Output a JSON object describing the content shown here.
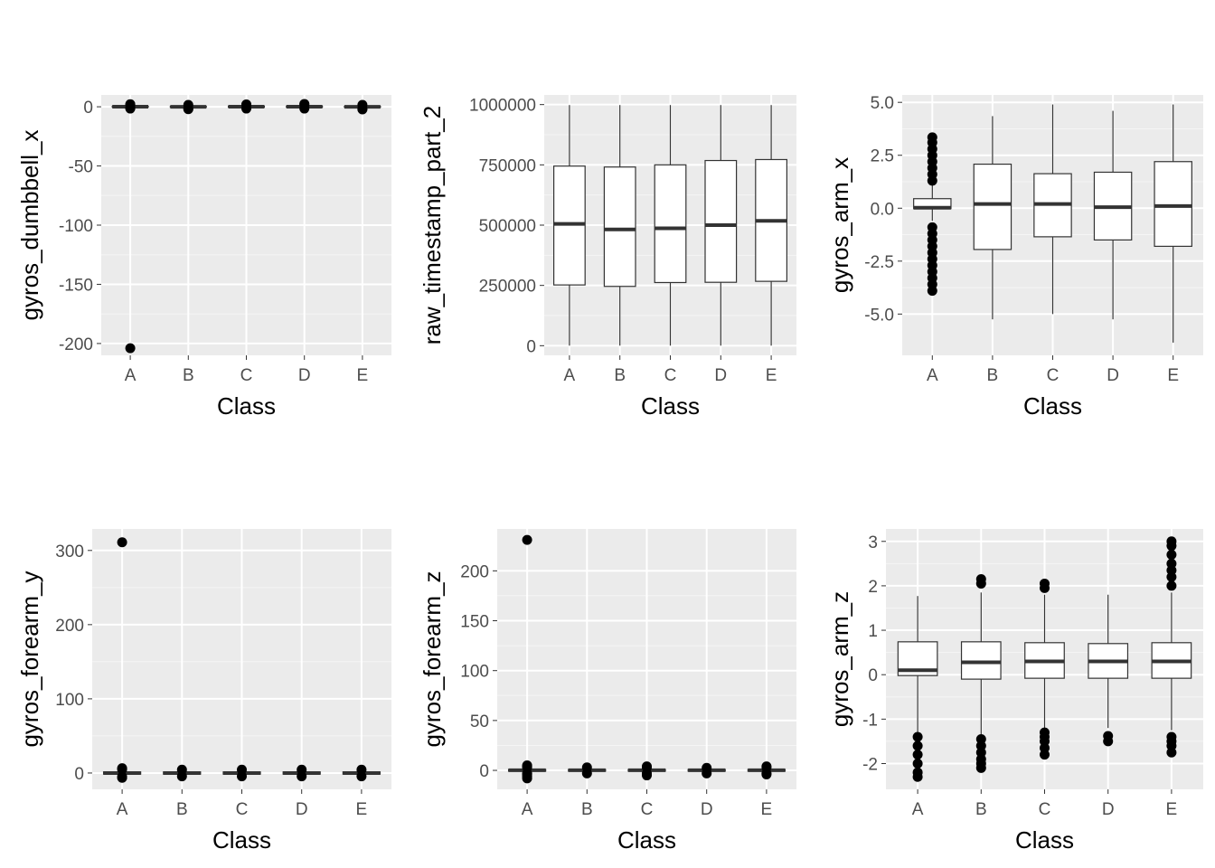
{
  "chart_data": [
    {
      "type": "boxplot",
      "xlabel": "Class",
      "ylabel": "gyros_dumbbell_x",
      "categories": [
        "A",
        "B",
        "C",
        "D",
        "E"
      ],
      "ylim": [
        -210,
        10
      ],
      "yticks": [
        0,
        -50,
        -100,
        -150,
        -200
      ],
      "ytick_labels": [
        "0",
        "-50",
        "-100",
        "-150",
        "-200"
      ],
      "boxes": [
        {
          "q1": -0.2,
          "median": 0.1,
          "q3": 0.4,
          "lower": -1.0,
          "upper": 1.2,
          "outliers": [
            -204,
            -1.5,
            -1.2,
            1.8,
            2.2
          ]
        },
        {
          "q1": -0.4,
          "median": 0.0,
          "q3": 0.4,
          "lower": -1.2,
          "upper": 1.2,
          "outliers": [
            -2.0,
            -1.6,
            1.6
          ]
        },
        {
          "q1": -0.3,
          "median": 0.1,
          "q3": 0.5,
          "lower": -1.0,
          "upper": 1.2,
          "outliers": [
            -1.5,
            1.8,
            2.0
          ]
        },
        {
          "q1": -0.3,
          "median": 0.1,
          "q3": 0.5,
          "lower": -1.0,
          "upper": 1.3,
          "outliers": [
            -1.5,
            2.0,
            2.4
          ]
        },
        {
          "q1": -0.4,
          "median": 0.0,
          "q3": 0.4,
          "lower": -1.2,
          "upper": 1.2,
          "outliers": [
            -2.2,
            -1.7,
            1.6
          ]
        }
      ]
    },
    {
      "type": "boxplot",
      "xlabel": "Class",
      "ylabel": "raw_timestamp_part_2",
      "categories": [
        "A",
        "B",
        "C",
        "D",
        "E"
      ],
      "ylim": [
        -40000,
        1040000
      ],
      "yticks": [
        0,
        250000,
        500000,
        750000,
        1000000
      ],
      "ytick_labels": [
        "0",
        "250000",
        "500000",
        "750000",
        "1000000"
      ],
      "boxes": [
        {
          "q1": 252000,
          "median": 505000,
          "q3": 745000,
          "lower": 300,
          "upper": 998000,
          "outliers": []
        },
        {
          "q1": 246000,
          "median": 482000,
          "q3": 741000,
          "lower": 300,
          "upper": 998000,
          "outliers": []
        },
        {
          "q1": 262000,
          "median": 487000,
          "q3": 750000,
          "lower": 300,
          "upper": 998000,
          "outliers": []
        },
        {
          "q1": 263000,
          "median": 500000,
          "q3": 768000,
          "lower": 300,
          "upper": 998000,
          "outliers": []
        },
        {
          "q1": 267000,
          "median": 518000,
          "q3": 772000,
          "lower": 300,
          "upper": 998000,
          "outliers": []
        }
      ]
    },
    {
      "type": "boxplot",
      "xlabel": "Class",
      "ylabel": "gyros_arm_x",
      "categories": [
        "A",
        "B",
        "C",
        "D",
        "E"
      ],
      "ylim": [
        -6.95,
        5.35
      ],
      "yticks": [
        5.0,
        2.5,
        0.0,
        -2.5,
        -5.0
      ],
      "ytick_labels": [
        "5.0",
        "2.5",
        "0.0",
        "-2.5",
        "-5.0"
      ],
      "boxes": [
        {
          "q1": -0.02,
          "median": 0.02,
          "q3": 0.45,
          "lower": -0.6,
          "upper": 1.1,
          "outliers": [
            -3.9,
            -3.6,
            -3.3,
            -3.0,
            -2.7,
            -2.4,
            -2.1,
            -1.8,
            -1.5,
            -1.2,
            -0.9,
            1.3,
            1.6,
            1.9,
            2.2,
            2.5,
            2.8,
            3.1,
            3.35
          ]
        },
        {
          "q1": -1.95,
          "median": 0.2,
          "q3": 2.08,
          "lower": -5.25,
          "upper": 4.35,
          "outliers": []
        },
        {
          "q1": -1.35,
          "median": 0.2,
          "q3": 1.63,
          "lower": -5.0,
          "upper": 4.9,
          "outliers": []
        },
        {
          "q1": -1.5,
          "median": 0.05,
          "q3": 1.7,
          "lower": -5.25,
          "upper": 4.6,
          "outliers": []
        },
        {
          "q1": -1.8,
          "median": 0.1,
          "q3": 2.2,
          "lower": -6.35,
          "upper": 4.9,
          "outliers": []
        }
      ]
    },
    {
      "type": "boxplot",
      "xlabel": "Class",
      "ylabel": "gyros_forearm_y",
      "categories": [
        "A",
        "B",
        "C",
        "D",
        "E"
      ],
      "ylim": [
        -22,
        329
      ],
      "yticks": [
        300,
        200,
        100,
        0
      ],
      "ytick_labels": [
        "300",
        "200",
        "100",
        "0"
      ],
      "boxes": [
        {
          "q1": -1.5,
          "median": 0.0,
          "q3": 1.5,
          "lower": -3.5,
          "upper": 3.5,
          "outliers": [
            311,
            -5.0,
            -6.5,
            5.0,
            6.5
          ]
        },
        {
          "q1": -1.5,
          "median": 0.0,
          "q3": 1.5,
          "lower": -3.5,
          "upper": 3.5,
          "outliers": [
            -4.5,
            4.5
          ]
        },
        {
          "q1": -1.5,
          "median": 0.0,
          "q3": 1.5,
          "lower": -3.5,
          "upper": 3.5,
          "outliers": [
            -4.5,
            4.5
          ]
        },
        {
          "q1": -1.5,
          "median": 0.0,
          "q3": 1.5,
          "lower": -3.5,
          "upper": 3.5,
          "outliers": [
            -4.5,
            4.5
          ]
        },
        {
          "q1": -1.5,
          "median": 0.0,
          "q3": 1.5,
          "lower": -3.5,
          "upper": 3.5,
          "outliers": [
            -4.5,
            4.5
          ]
        }
      ]
    },
    {
      "type": "boxplot",
      "xlabel": "Class",
      "ylabel": "gyros_forearm_z",
      "categories": [
        "A",
        "B",
        "C",
        "D",
        "E"
      ],
      "ylim": [
        -19,
        242
      ],
      "yticks": [
        200,
        150,
        100,
        50,
        0
      ],
      "ytick_labels": [
        "200",
        "150",
        "100",
        "50",
        "0"
      ],
      "boxes": [
        {
          "q1": -0.8,
          "median": 0.1,
          "q3": 0.9,
          "lower": -2.0,
          "upper": 2.0,
          "outliers": [
            231,
            -8.0,
            -6.0,
            -4.0,
            -3.0,
            3.0,
            4.0,
            5.0
          ]
        },
        {
          "q1": -0.8,
          "median": 0.1,
          "q3": 0.9,
          "lower": -2.0,
          "upper": 2.0,
          "outliers": [
            -3.0,
            3.0
          ]
        },
        {
          "q1": -0.8,
          "median": 0.1,
          "q3": 0.9,
          "lower": -2.0,
          "upper": 2.0,
          "outliers": [
            -5.0,
            -3.0,
            3.0,
            4.0
          ]
        },
        {
          "q1": -0.8,
          "median": 0.1,
          "q3": 0.9,
          "lower": -2.0,
          "upper": 2.0,
          "outliers": [
            -3.0,
            2.5
          ]
        },
        {
          "q1": -0.8,
          "median": 0.1,
          "q3": 0.9,
          "lower": -2.0,
          "upper": 2.0,
          "outliers": [
            -4.0,
            -3.0,
            3.0,
            4.0
          ]
        }
      ]
    },
    {
      "type": "boxplot",
      "xlabel": "Class",
      "ylabel": "gyros_arm_z",
      "categories": [
        "A",
        "B",
        "C",
        "D",
        "E"
      ],
      "ylim": [
        -2.58,
        3.28
      ],
      "yticks": [
        3,
        2,
        1,
        0,
        -1,
        -2
      ],
      "ytick_labels": [
        "3",
        "2",
        "1",
        "0",
        "-1",
        "-2"
      ],
      "boxes": [
        {
          "q1": -0.02,
          "median": 0.1,
          "q3": 0.74,
          "lower": -1.3,
          "upper": 1.77,
          "outliers": [
            -2.3,
            -2.2,
            -2.0,
            -1.8,
            -1.6,
            -1.4
          ]
        },
        {
          "q1": -0.1,
          "median": 0.28,
          "q3": 0.74,
          "lower": -1.35,
          "upper": 1.85,
          "outliers": [
            -2.1,
            -2.0,
            -1.9,
            -1.75,
            -1.6,
            -1.45,
            2.05,
            2.15
          ]
        },
        {
          "q1": -0.08,
          "median": 0.3,
          "q3": 0.72,
          "lower": -1.2,
          "upper": 1.8,
          "outliers": [
            -1.8,
            -1.65,
            -1.5,
            -1.4,
            -1.3,
            1.95,
            2.05
          ]
        },
        {
          "q1": -0.08,
          "median": 0.3,
          "q3": 0.7,
          "lower": -1.2,
          "upper": 1.8,
          "outliers": [
            -1.5,
            -1.38
          ]
        },
        {
          "q1": -0.08,
          "median": 0.3,
          "q3": 0.72,
          "lower": -1.25,
          "upper": 1.85,
          "outliers": [
            -1.75,
            -1.6,
            -1.5,
            -1.4,
            2.0,
            2.2,
            2.35,
            2.5,
            2.7,
            2.9,
            3.0
          ]
        }
      ]
    }
  ]
}
